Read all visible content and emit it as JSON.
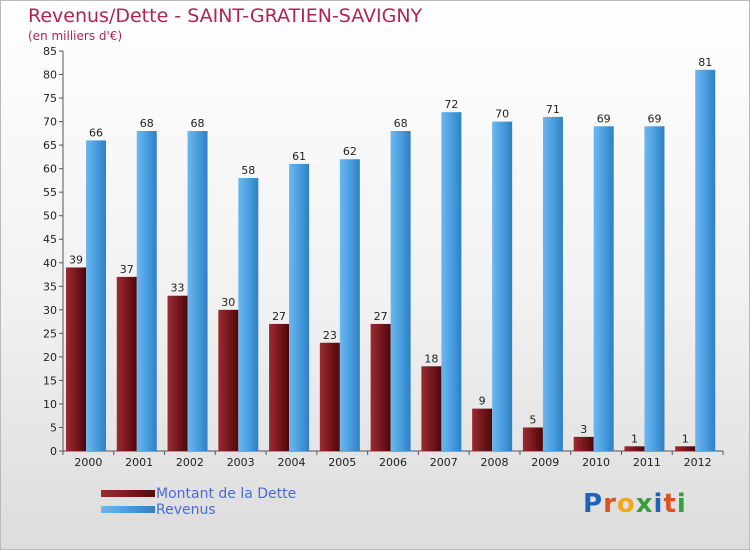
{
  "header": {
    "title": "Revenus/Dette - SAINT-GRATIEN-SAVIGNY",
    "subtitle": "(en milliers d'€)"
  },
  "legend": [
    {
      "label": "Montant de la Dette",
      "color": "#6b0f14"
    },
    {
      "label": "Revenus",
      "color": "#4a9fe0"
    }
  ],
  "logo": {
    "text": "Proxiti",
    "letters": [
      {
        "ch": "P",
        "color": "#1e63b5"
      },
      {
        "ch": "r",
        "color": "#e0501e"
      },
      {
        "ch": "o",
        "color": "#f2a81c"
      },
      {
        "ch": "x",
        "color": "#3a9e3a"
      },
      {
        "ch": "i",
        "color": "#1e63b5"
      },
      {
        "ch": "t",
        "color": "#e0501e"
      },
      {
        "ch": "i",
        "color": "#3a9e3a"
      }
    ]
  },
  "chart_data": {
    "type": "bar",
    "title": "Revenus/Dette - SAINT-GRATIEN-SAVIGNY",
    "subtitle": "(en milliers d'€)",
    "categories": [
      "2000",
      "2001",
      "2002",
      "2003",
      "2004",
      "2005",
      "2006",
      "2007",
      "2008",
      "2009",
      "2010",
      "2011",
      "2012"
    ],
    "series": [
      {
        "name": "Montant de la Dette",
        "color": "#6b0f14",
        "values": [
          39,
          37,
          33,
          30,
          27,
          23,
          27,
          18,
          9,
          5,
          3,
          1,
          1
        ]
      },
      {
        "name": "Revenus",
        "color": "#4a9fe0",
        "values": [
          66,
          68,
          68,
          58,
          61,
          62,
          68,
          72,
          70,
          71,
          69,
          69,
          81
        ]
      }
    ],
    "ylim": [
      0,
      85
    ],
    "yticks": [
      0,
      5,
      10,
      15,
      20,
      25,
      30,
      35,
      40,
      45,
      50,
      55,
      60,
      65,
      70,
      75,
      80,
      85
    ],
    "grid": false,
    "legend_position": "bottom-left"
  }
}
